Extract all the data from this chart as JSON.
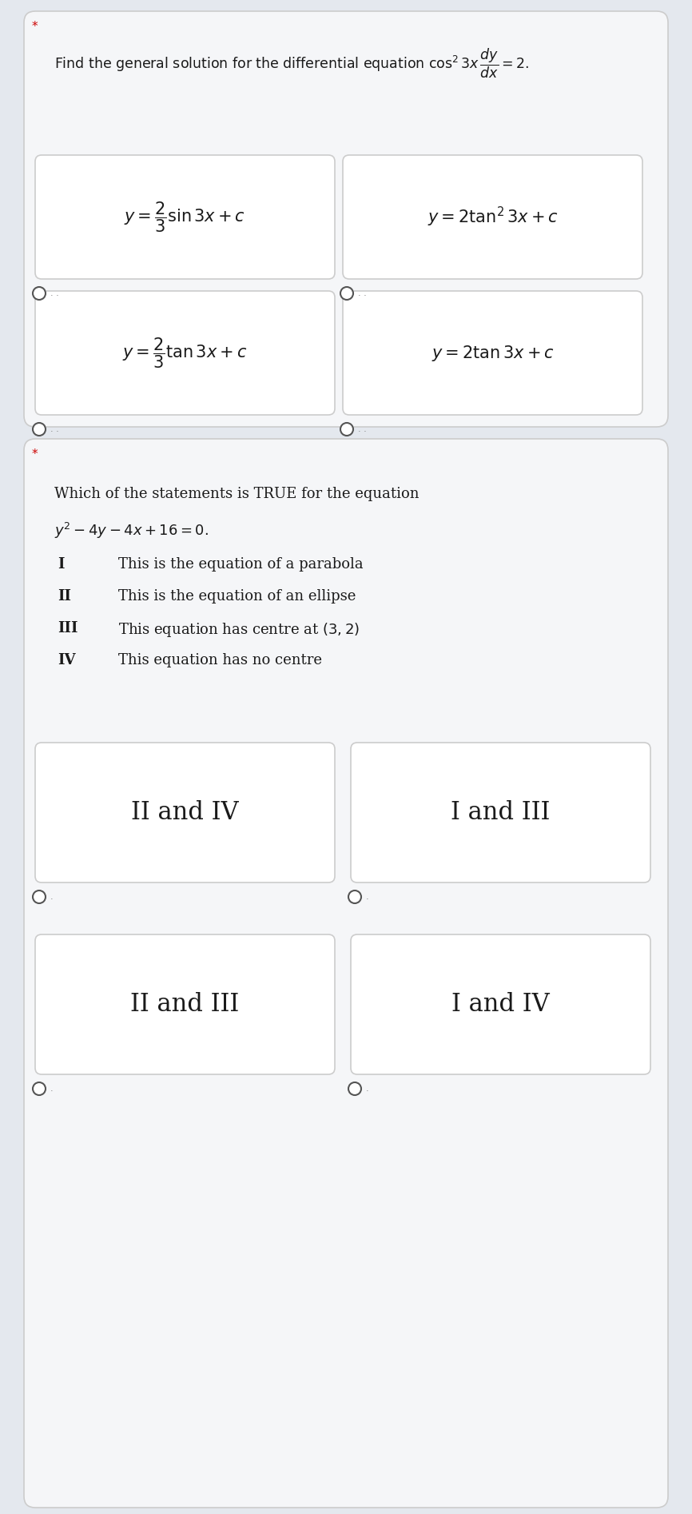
{
  "bg_color": "#e4e8ee",
  "card_bg": "#f5f6f8",
  "card_border": "#cccccc",
  "white": "#ffffff",
  "text_color": "#1a1a1a",
  "star_color": "#cc0000",
  "radio_color": "#555555",
  "q1_intro": "Find the general solution for the differential equation $\\cos^2 3x\\,\\dfrac{dy}{dx} = 2$.",
  "q1_opt_tl": "$y = \\dfrac{2}{3}\\sin 3x + c$",
  "q1_opt_tr": "$y = 2\\tan^2 3x + c$",
  "q1_opt_bl": "$y = \\dfrac{2}{3}\\tan 3x + c$",
  "q1_opt_br": "$y = 2\\tan 3x + c$",
  "q2_line1": "Which of the statements is TRUE for the equation",
  "q2_line2": "$y^2 - 4y - 4x + 16 = 0$.",
  "stmt_romans": [
    "I",
    "II",
    "III",
    "IV"
  ],
  "stmt_texts": [
    "This is the equation of a parabola",
    "This is the equation of an ellipse",
    "This equation has centre at $(3,2)$",
    "This equation has no centre"
  ],
  "q2_opts": [
    "II and IV",
    "I and III",
    "II and III",
    "I and IV"
  ]
}
